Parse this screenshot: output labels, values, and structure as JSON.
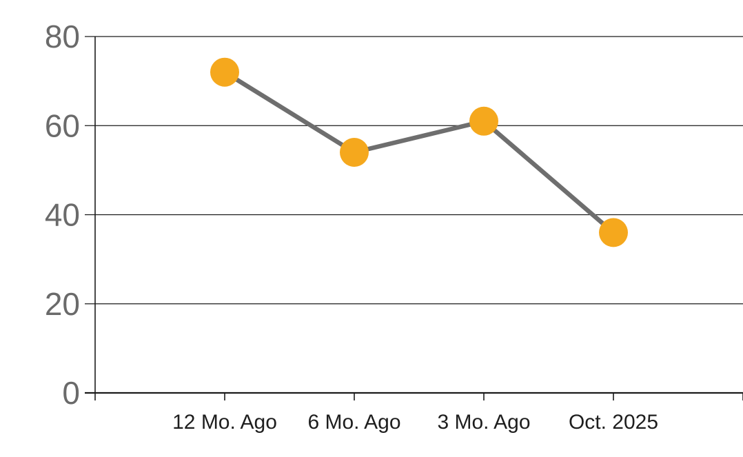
{
  "chart_data": {
    "type": "line",
    "title": "",
    "xlabel": "",
    "ylabel": "",
    "categories": [
      "12 Mo. Ago",
      "6 Mo. Ago",
      "3 Mo. Ago",
      "Oct. 2025"
    ],
    "values": [
      72,
      54,
      61,
      36
    ],
    "ylim": [
      0,
      80
    ],
    "yticks": [
      0,
      20,
      40,
      60,
      80
    ],
    "grid": true,
    "legend": "none",
    "colors": {
      "marker": "#F5A81D",
      "line": "#6E6E6E",
      "grid": "#1A1A1A",
      "y_tick_label": "#6A6A6A",
      "x_tick_label": "#1E1E1E",
      "background": "#FFFFFF"
    }
  }
}
